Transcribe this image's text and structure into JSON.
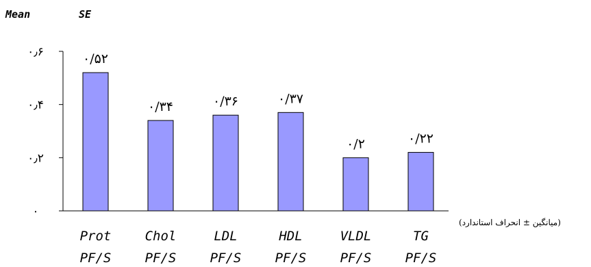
{
  "header": {
    "mean_label": "Mean",
    "se_label": "SE"
  },
  "caption": "(میانگین ± انحراف استاندارد)",
  "colors": {
    "bar_fill": "#9999ff",
    "bar_stroke": "#000000",
    "axis": "#000000"
  },
  "chart_data": {
    "type": "bar",
    "categories": [
      "Prot",
      "Chol",
      "LDL",
      "HDL",
      "VLDL",
      "TG"
    ],
    "sublabels": [
      "PF/S",
      "PF/S",
      "PF/S",
      "PF/S",
      "PF/S",
      "PF/S"
    ],
    "values": [
      0.52,
      0.34,
      0.36,
      0.37,
      0.2,
      0.22
    ],
    "data_labels": [
      "۰/۵۲",
      "۰/۳۴",
      "۰/۳۶",
      "۰/۳۷",
      "۰/۲",
      "۰/۲۲"
    ],
    "y_ticks": [
      0,
      0.2,
      0.4,
      0.6
    ],
    "y_tick_labels": [
      "۰",
      "۰٫۲",
      "۰٫۴",
      "۰٫۶"
    ],
    "ylim": [
      0,
      0.6
    ],
    "grid": false,
    "title": "",
    "xlabel": "",
    "ylabel": ""
  }
}
